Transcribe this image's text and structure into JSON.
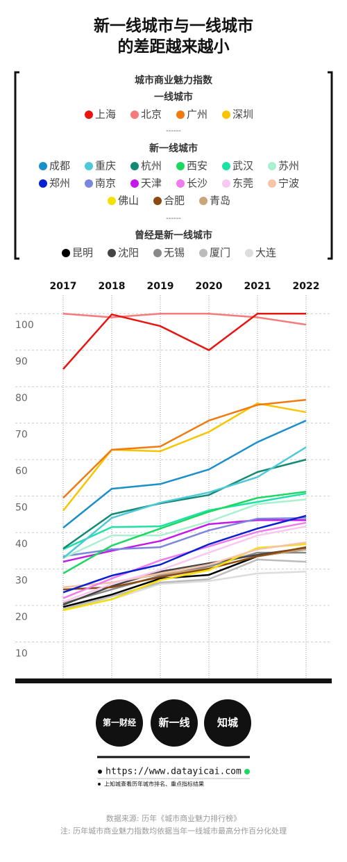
{
  "chart_data": {
    "type": "line",
    "title_lines": [
      "新一线城市与一线城市",
      "的差距越来越小"
    ],
    "legend_title": "城市商业魅力指数",
    "categories": [
      "2017",
      "2018",
      "2019",
      "2020",
      "2021",
      "2022"
    ],
    "ylim": [
      0,
      105
    ],
    "yticks": [
      10,
      20,
      30,
      40,
      50,
      60,
      70,
      80,
      90,
      100
    ],
    "grid": true,
    "groups": [
      {
        "title": "一线城市",
        "series": [
          {
            "name": "上海",
            "color": "#e8140f",
            "values": [
              84.8,
              99.8,
              96.6,
              90,
              100,
              100
            ]
          },
          {
            "name": "北京",
            "color": "#f47b7b",
            "values": [
              100,
              99,
              100,
              100,
              99,
              97
            ]
          },
          {
            "name": "广州",
            "color": "#f07a10",
            "values": [
              49.5,
              62.7,
              63.6,
              70.7,
              75,
              76.4
            ]
          },
          {
            "name": "深圳",
            "color": "#f7c500",
            "values": [
              46,
              62.7,
              62.3,
              67.6,
              75.4,
              73
            ]
          }
        ]
      },
      {
        "title": "新一线城市",
        "series": [
          {
            "name": "成都",
            "color": "#1a8fc9",
            "values": [
              41.3,
              52,
              53.3,
              57.3,
              64.8,
              70.7
            ]
          },
          {
            "name": "重庆",
            "color": "#4fc8d8",
            "values": [
              33,
              44,
              48.2,
              51,
              55.2,
              63.4
            ]
          },
          {
            "name": "杭州",
            "color": "#138a74",
            "values": [
              35.6,
              45,
              48,
              50.3,
              56.6,
              60
            ]
          },
          {
            "name": "西安",
            "color": "#1ed760",
            "values": [
              28.8,
              36.4,
              41.1,
              45.7,
              49.5,
              51.2
            ]
          },
          {
            "name": "武汉",
            "color": "#1de2a8",
            "values": [
              35.4,
              41.5,
              41.7,
              46.1,
              48.4,
              50.7
            ]
          },
          {
            "name": "苏州",
            "color": "#aaf0d0",
            "values": [
              33,
              39.2,
              39.2,
              43,
              47.8,
              49.1
            ]
          },
          {
            "name": "郑州",
            "color": "#0a1fd0",
            "values": [
              23.6,
              28.2,
              31.2,
              36.8,
              41.1,
              44.6
            ]
          },
          {
            "name": "南京",
            "color": "#7b86dd",
            "values": [
              33.5,
              35.4,
              36,
              40.6,
              43.8,
              44
            ]
          },
          {
            "name": "天津",
            "color": "#c21ae8",
            "values": [
              32,
              35,
              37.7,
              42.3,
              43.4,
              43.4
            ]
          },
          {
            "name": "长沙",
            "color": "#f07bec",
            "values": [
              22,
              27.4,
              32.4,
              36.2,
              40.2,
              42.7
            ]
          },
          {
            "name": "东莞",
            "color": "#f8c8f0",
            "values": [
              21,
              25.9,
              29.7,
              34.5,
              39.2,
              41.7
            ]
          },
          {
            "name": "宁波",
            "color": "#f5c3a8",
            "values": [
              25,
              26.3,
              28.8,
              31.2,
              35.4,
              37.3
            ]
          },
          {
            "name": "佛山",
            "color": "#f5e000",
            "values": [
              18.7,
              21.7,
              27,
              29.7,
              35.8,
              36.8
            ]
          },
          {
            "name": "合肥",
            "color": "#8b4a10",
            "values": [
              24.4,
              25,
              27.8,
              30.1,
              33.5,
              36
            ]
          },
          {
            "name": "青岛",
            "color": "#c9a57a",
            "values": [
              25,
              26.3,
              28.6,
              30.1,
              33.5,
              35.4
            ]
          }
        ]
      },
      {
        "title": "曾经是新一线城市",
        "series": [
          {
            "name": "昆明",
            "color": "#000000",
            "values": [
              19.6,
              23,
              27.4,
              28.4,
              33.5,
              35.4
            ]
          },
          {
            "name": "沈阳",
            "color": "#444444",
            "values": [
              20.2,
              25.3,
              29.3,
              31.6,
              33.9,
              35.8
            ]
          },
          {
            "name": "无锡",
            "color": "#888888",
            "values": [
              20.6,
              24.4,
              28.2,
              30.7,
              34.5,
              34.5
            ]
          },
          {
            "name": "厦门",
            "color": "#bbbbbb",
            "values": [
              19,
              22.5,
              26.3,
              27.2,
              32.6,
              32
            ]
          },
          {
            "name": "大连",
            "color": "#dddddd",
            "values": [
              19.8,
              21.7,
              25.9,
              26.7,
              28.8,
              29.3
            ]
          }
        ]
      }
    ]
  },
  "footer": {
    "logos": [
      "第一财经",
      "新一线",
      "知城"
    ],
    "url": "https://www.datayicai.com",
    "hint": "上知城查看历年城市排名、重点指标结果",
    "source": "数据来源: 历年《城市商业魅力排行榜》",
    "note": "注: 历年城市商业魅力指数均依据当年一线城市最高分作百分化处理"
  }
}
